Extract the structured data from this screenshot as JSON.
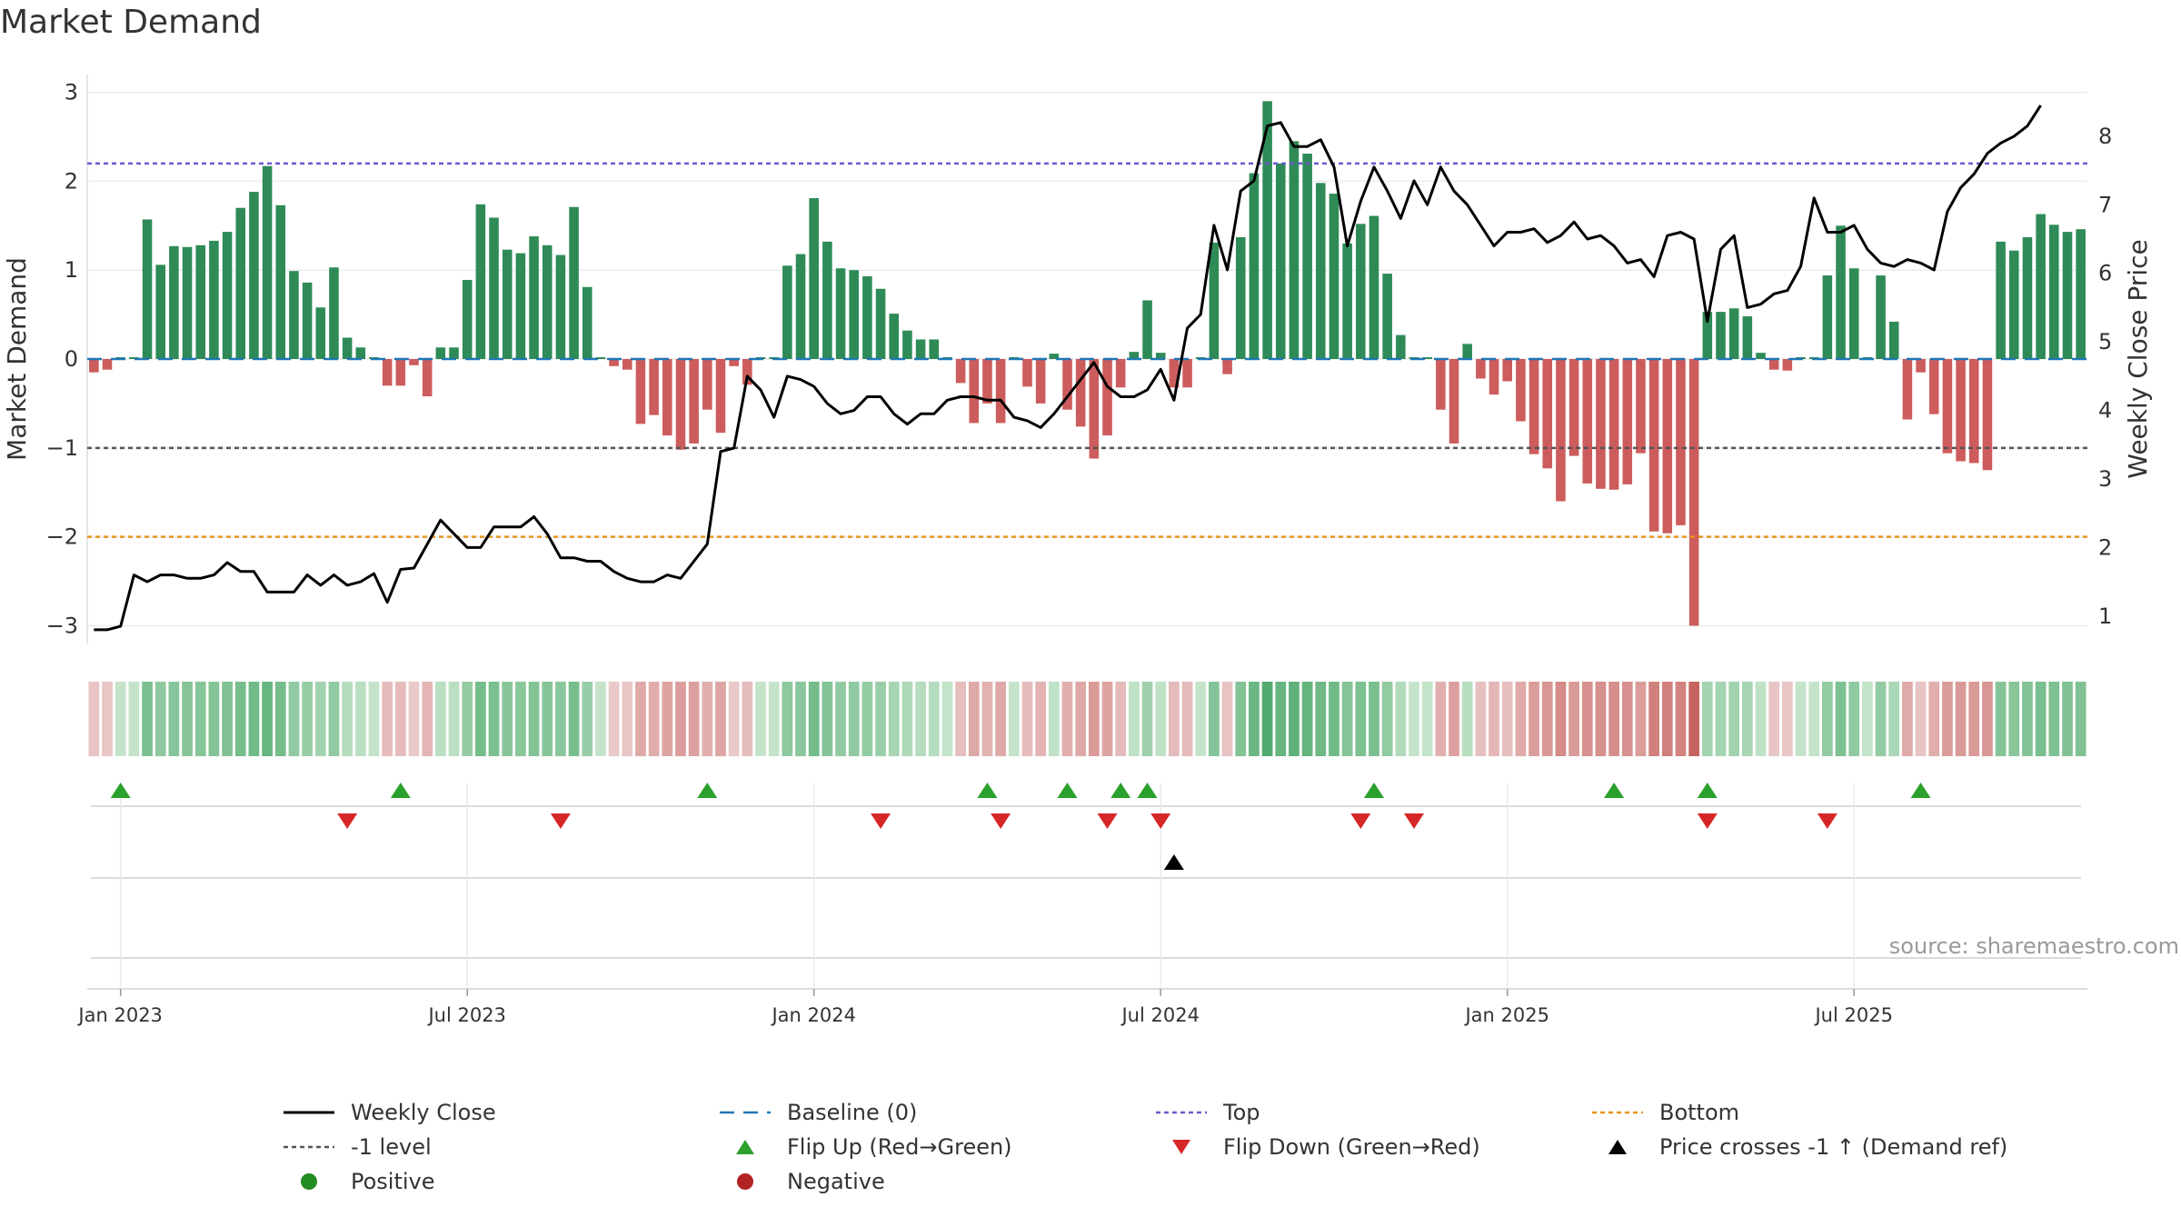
{
  "title": "Market Demand",
  "source": "source: sharemaestro.com",
  "colors": {
    "positive": "#2e8b57",
    "negative": "#cd5c5c",
    "line": "#000000",
    "top": "#6a5acd",
    "bottom": "#e69520",
    "minus1": "#555555",
    "baseline": "#1f77b4",
    "flip_up": "#2ca02c",
    "flip_down": "#d62728",
    "cross": "#000000"
  },
  "legend": {
    "weekly_close": "Weekly Close",
    "baseline": "Baseline (0)",
    "top": "Top",
    "bottom": "Bottom",
    "minus1": "-1 level",
    "flip_up": "Flip Up (Red→Green)",
    "flip_down": "Flip Down (Green→Red)",
    "price_cross": "Price crosses -1 ↑ (Demand ref)",
    "positive": "Positive",
    "negative": "Negative"
  },
  "chart_data": {
    "type": "bar+line",
    "title": "Market Demand",
    "ylabel": "Market Demand",
    "y2label": "Weekly Close Price",
    "ylim": [
      -3.2,
      3.2
    ],
    "y2lim": [
      0.6,
      8.9
    ],
    "yticks": [
      -3,
      -2,
      -1,
      0,
      1,
      2,
      3
    ],
    "yticklabels": [
      "−3",
      "−2",
      "−1",
      "0",
      "1",
      "2",
      "3"
    ],
    "y2ticks": [
      1,
      2,
      3,
      4,
      5,
      6,
      7,
      8
    ],
    "top_level": 2.2,
    "bottom_level": -2.0,
    "minus1_level": -1.0,
    "xticks": [
      {
        "label": "Jan 2023",
        "week": 2
      },
      {
        "label": "Jul 2023",
        "week": 28
      },
      {
        "label": "Jan 2024",
        "week": 54
      },
      {
        "label": "Jul 2024",
        "week": 80
      },
      {
        "label": "Jan 2025",
        "week": 106
      },
      {
        "label": "Jul 2025",
        "week": 132
      }
    ],
    "demand": [
      -0.15,
      -0.12,
      0.02,
      0.02,
      1.57,
      1.06,
      1.27,
      1.26,
      1.28,
      1.33,
      1.43,
      1.7,
      1.88,
      2.17,
      1.73,
      0.99,
      0.86,
      0.58,
      1.03,
      0.24,
      0.13,
      0.02,
      -0.3,
      -0.3,
      -0.07,
      -0.42,
      0.13,
      0.13,
      0.89,
      1.74,
      1.59,
      1.23,
      1.19,
      1.38,
      1.28,
      1.17,
      1.71,
      0.81,
      0.02,
      -0.08,
      -0.12,
      -0.73,
      -0.63,
      -0.86,
      -1.02,
      -0.95,
      -0.57,
      -0.83,
      -0.08,
      -0.29,
      0.02,
      0.02,
      1.05,
      1.18,
      1.81,
      1.32,
      1.02,
      1.0,
      0.93,
      0.79,
      0.51,
      0.32,
      0.22,
      0.22,
      0.02,
      -0.27,
      -0.72,
      -0.5,
      -0.72,
      0.02,
      -0.31,
      -0.5,
      0.06,
      -0.57,
      -0.76,
      -1.12,
      -0.86,
      -0.32,
      0.08,
      0.66,
      0.07,
      -0.32,
      -0.32,
      0.02,
      1.31,
      -0.17,
      1.37,
      2.09,
      2.9,
      2.2,
      2.45,
      2.31,
      1.98,
      1.86,
      1.3,
      1.52,
      1.61,
      0.96,
      0.27,
      0.02,
      0.02,
      -0.57,
      -0.95,
      0.17,
      -0.22,
      -0.4,
      -0.25,
      -0.7,
      -1.07,
      -1.23,
      -1.6,
      -1.09,
      -1.4,
      -1.46,
      -1.47,
      -1.41,
      -1.06,
      -1.94,
      -1.96,
      -1.87,
      -3.0,
      0.53,
      0.53,
      0.57,
      0.48,
      0.07,
      -0.12,
      -0.13,
      0.02,
      0.02,
      0.94,
      1.5,
      1.02,
      0.02,
      0.94,
      0.42,
      -0.68,
      -0.15,
      -0.62,
      -1.06,
      -1.15,
      -1.17,
      -1.25,
      1.32,
      1.22,
      1.37,
      1.63,
      1.51,
      1.43,
      1.46
    ],
    "close": [
      0.8,
      0.8,
      0.85,
      1.6,
      1.5,
      1.6,
      1.6,
      1.55,
      1.55,
      1.6,
      1.78,
      1.65,
      1.65,
      1.35,
      1.35,
      1.35,
      1.6,
      1.45,
      1.6,
      1.45,
      1.5,
      1.62,
      1.2,
      1.68,
      1.7,
      2.05,
      2.4,
      2.2,
      2.0,
      2.0,
      2.3,
      2.3,
      2.3,
      2.45,
      2.2,
      1.85,
      1.85,
      1.8,
      1.8,
      1.65,
      1.55,
      1.5,
      1.5,
      1.6,
      1.55,
      1.8,
      2.05,
      3.4,
      3.45,
      4.5,
      4.3,
      3.9,
      4.5,
      4.45,
      4.35,
      4.1,
      3.95,
      4.0,
      4.2,
      4.2,
      3.95,
      3.8,
      3.95,
      3.95,
      4.15,
      4.2,
      4.2,
      4.15,
      4.15,
      3.9,
      3.85,
      3.75,
      3.95,
      4.2,
      4.45,
      4.7,
      4.35,
      4.2,
      4.2,
      4.3,
      4.6,
      4.15,
      5.2,
      5.4,
      6.7,
      6.05,
      7.2,
      7.35,
      8.15,
      8.2,
      7.85,
      7.85,
      7.95,
      7.55,
      6.4,
      7.05,
      7.55,
      7.2,
      6.8,
      7.35,
      7.0,
      7.55,
      7.2,
      7.0,
      6.7,
      6.4,
      6.6,
      6.6,
      6.65,
      6.45,
      6.55,
      6.75,
      6.5,
      6.55,
      6.4,
      6.15,
      6.2,
      5.95,
      6.55,
      6.6,
      6.5,
      5.3,
      6.35,
      6.55,
      5.5,
      5.55,
      5.7,
      5.75,
      6.1,
      7.1,
      6.6,
      6.6,
      6.7,
      6.35,
      6.15,
      6.1,
      6.2,
      6.15,
      6.05,
      6.9,
      7.25,
      7.45,
      7.75,
      7.9,
      8.0,
      8.15,
      8.45
    ],
    "flip_up_weeks": [
      2,
      23,
      46,
      67,
      73,
      77,
      79,
      96,
      114,
      121,
      137
    ],
    "flip_down_weeks": [
      19,
      35,
      59,
      68,
      76,
      80,
      95,
      99,
      121,
      130
    ],
    "price_cross_weeks": [
      81
    ]
  }
}
